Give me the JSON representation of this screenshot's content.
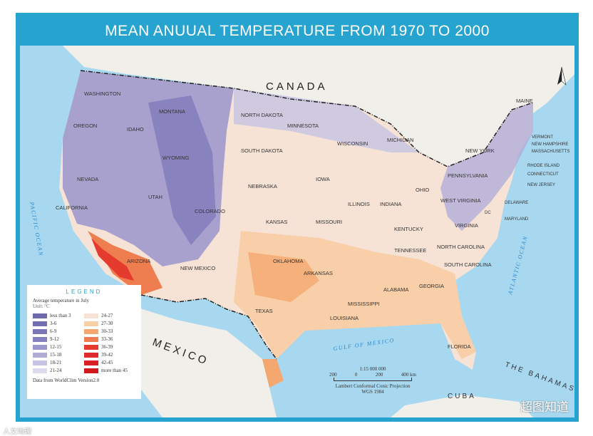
{
  "title": "MEAN ANUUAL TEMPERATURE FROM 1970 TO 2000",
  "countries": {
    "canada": "CANADA",
    "mexico": "MEXICO",
    "bahamas": "THE BAHAMAS",
    "cuba": "CUBA"
  },
  "oceans": {
    "pacific": "PACIFIC OCEAN",
    "atlantic": "ATLANTIC OCEAN",
    "gulf": "GULF OF MEXICO"
  },
  "states": [
    "WASHINGTON",
    "OREGON",
    "CALIFORNIA",
    "NEVADA",
    "IDAHO",
    "MONTANA",
    "WYOMING",
    "UTAH",
    "ARIZONA",
    "COLORADO",
    "NEW MEXICO",
    "NORTH DAKOTA",
    "SOUTH DAKOTA",
    "NEBRASKA",
    "KANSAS",
    "OKLAHOMA",
    "TEXAS",
    "MINNESOTA",
    "IOWA",
    "MISSOURI",
    "ARKANSAS",
    "LOUISIANA",
    "WISCONSIN",
    "ILLINOIS",
    "MISSISSIPPI",
    "MICHIGAN",
    "INDIANA",
    "KENTUCKY",
    "TENNESSEE",
    "ALABAMA",
    "OHIO",
    "GEORGIA",
    "FLORIDA",
    "SOUTH CAROLINA",
    "NORTH CAROLINA",
    "VIRGINIA",
    "WEST VIRGINIA",
    "PENNSYLVANIA",
    "NEW YORK",
    "MAINE",
    "VERMONT",
    "NEW HAMPSHIRE",
    "MASSACHUSETTS",
    "RHODE ISLAND",
    "CONNECTICUT",
    "NEW JERSEY",
    "DELAWARE",
    "MARYLAND",
    "DC"
  ],
  "legend": {
    "title": "LEGEND",
    "subtitle": "Average temperature in July",
    "unit": "Unit: °C",
    "items": [
      {
        "label": "less than 3",
        "color": "#6e6aae"
      },
      {
        "label": "3-6",
        "color": "#736fb3"
      },
      {
        "label": "6-9",
        "color": "#7a76b8"
      },
      {
        "label": "9-12",
        "color": "#8580c0"
      },
      {
        "label": "12-15",
        "color": "#9a95cc"
      },
      {
        "label": "15-18",
        "color": "#b0acd8"
      },
      {
        "label": "18-21",
        "color": "#c6c3e3"
      },
      {
        "label": "21-24",
        "color": "#dcdaee"
      },
      {
        "label": "24-27",
        "color": "#f7e3d6"
      },
      {
        "label": "27-30",
        "color": "#f8cfa8"
      },
      {
        "label": "30-33",
        "color": "#f4a870"
      },
      {
        "label": "33-36",
        "color": "#ee7d50"
      },
      {
        "label": "36-39",
        "color": "#e43b2e"
      },
      {
        "label": "39-42",
        "color": "#de2a2a"
      },
      {
        "label": "42-45",
        "color": "#d82026"
      },
      {
        "label": "more than 45",
        "color": "#d01a22"
      }
    ],
    "source": "Data from WorldClim Version2.0"
  },
  "scale": {
    "ratio": "1:15 000 000",
    "ticks": [
      "200",
      "0",
      "200",
      "400 km"
    ],
    "projection": "Lambert Conformal Conic Projection",
    "datum": "WGS 1984"
  },
  "north_arrow": "north-arrow-icon",
  "watermark": "超图知道",
  "watermark_left": "人文地理"
}
